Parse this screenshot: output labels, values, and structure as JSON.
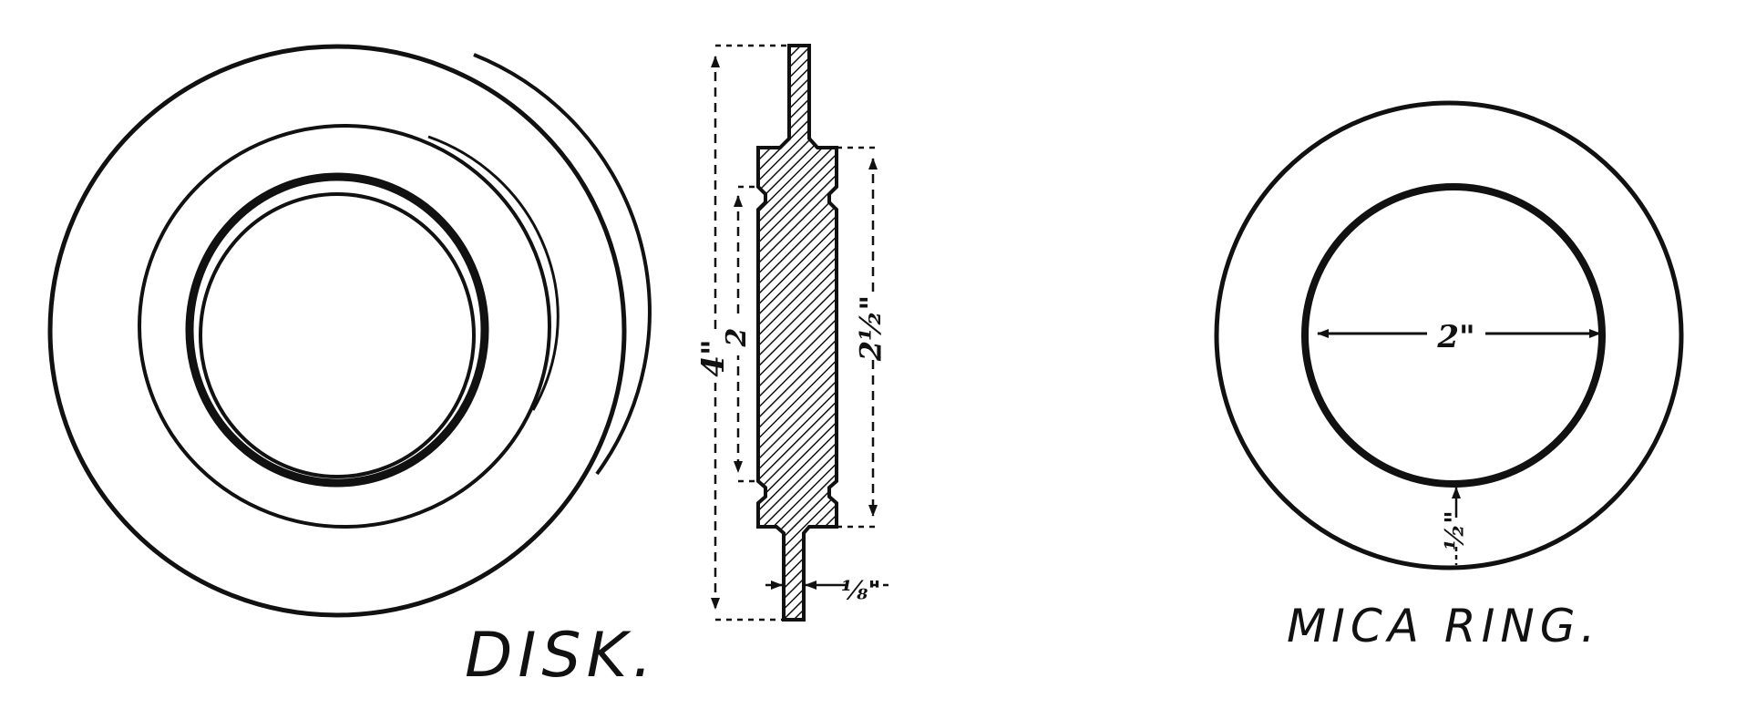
{
  "disk": {
    "caption": "DISK.",
    "dimensions": {
      "overall_height": "4\"",
      "inner_height": "2",
      "hub_height": "2½\"",
      "thickness": "⅛\""
    }
  },
  "mica_ring": {
    "caption": "MICA RING.",
    "dimensions": {
      "inner_diameter": "2\"",
      "ring_width": "½\""
    }
  },
  "colors": {
    "ink": "#111111",
    "paper": "#ffffff"
  }
}
